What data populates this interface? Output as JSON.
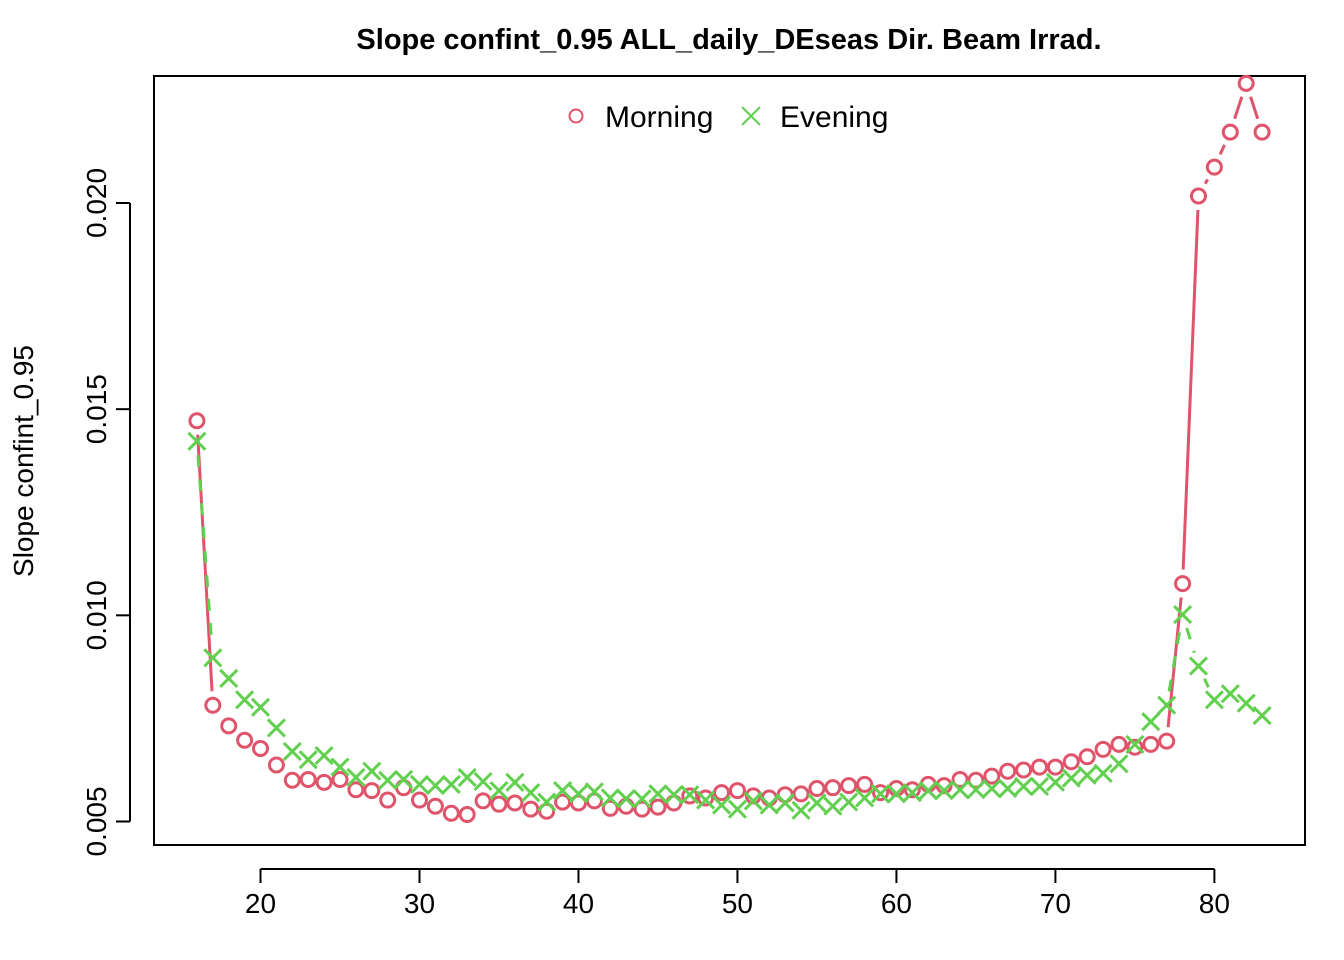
{
  "chart_data": {
    "type": "line",
    "title": "Slope confint_0.95 ALL_daily_DEseas Dir. Beam Irrad.",
    "xlabel": "",
    "ylabel": "Slope confint_0.95",
    "xlim": [
      13.3,
      85.7
    ],
    "ylim": [
      0.00443,
      0.02308
    ],
    "x_ticks": [
      20,
      30,
      40,
      50,
      60,
      70,
      80
    ],
    "y_ticks": [
      0.005,
      0.01,
      0.015,
      0.02
    ],
    "y_tick_labels": [
      "0.005",
      "0.010",
      "0.015",
      "0.020"
    ],
    "grid": false,
    "legend": {
      "position": "top-center"
    },
    "x": [
      16,
      17,
      18,
      19,
      20,
      21,
      22,
      23,
      24,
      25,
      26,
      27,
      28,
      29,
      30,
      31,
      32,
      33,
      34,
      35,
      36,
      37,
      38,
      39,
      40,
      41,
      42,
      43,
      44,
      45,
      46,
      47,
      48,
      49,
      50,
      51,
      52,
      53,
      54,
      55,
      56,
      57,
      58,
      59,
      60,
      61,
      62,
      63,
      64,
      65,
      66,
      67,
      68,
      69,
      70,
      71,
      72,
      73,
      74,
      75,
      76,
      77,
      78,
      79,
      80,
      81,
      82,
      83
    ],
    "series": [
      {
        "name": "Morning",
        "color": "#DF536B",
        "marker": "circle",
        "line": "solid",
        "values": [
          0.01472,
          0.00782,
          0.00732,
          0.00697,
          0.00677,
          0.00637,
          0.006,
          0.00602,
          0.00595,
          0.00602,
          0.00577,
          0.00575,
          0.00552,
          0.00582,
          0.00552,
          0.00537,
          0.0052,
          0.00517,
          0.0055,
          0.00542,
          0.00545,
          0.0053,
          0.00525,
          0.00547,
          0.00545,
          0.0055,
          0.00532,
          0.00537,
          0.0053,
          0.00535,
          0.00545,
          0.00562,
          0.00557,
          0.0057,
          0.00575,
          0.00562,
          0.00557,
          0.00565,
          0.00567,
          0.0058,
          0.00582,
          0.00587,
          0.0059,
          0.0057,
          0.0058,
          0.00577,
          0.0059,
          0.00587,
          0.00602,
          0.006,
          0.0061,
          0.00622,
          0.00625,
          0.00632,
          0.00632,
          0.00645,
          0.00657,
          0.00675,
          0.00687,
          0.0068,
          0.00687,
          0.00695,
          0.01077,
          0.02017,
          0.02087,
          0.02172,
          0.0229,
          0.02172
        ]
      },
      {
        "name": "Evening",
        "color": "#61D04F",
        "marker": "cross",
        "line": "dashed",
        "values": [
          0.01422,
          0.00897,
          0.00847,
          0.00795,
          0.00777,
          0.00727,
          0.0067,
          0.0065,
          0.0066,
          0.00632,
          0.00607,
          0.00622,
          0.006,
          0.00602,
          0.0059,
          0.00587,
          0.0059,
          0.00607,
          0.00597,
          0.00575,
          0.00595,
          0.0057,
          0.00547,
          0.00575,
          0.00567,
          0.00572,
          0.00557,
          0.00555,
          0.00555,
          0.00567,
          0.00565,
          0.00565,
          0.00552,
          0.0054,
          0.0053,
          0.0055,
          0.0054,
          0.00545,
          0.00527,
          0.00545,
          0.00537,
          0.00547,
          0.00557,
          0.00567,
          0.00567,
          0.0057,
          0.00575,
          0.00575,
          0.00577,
          0.00577,
          0.0058,
          0.0058,
          0.00585,
          0.00585,
          0.00595,
          0.00605,
          0.00612,
          0.00617,
          0.0064,
          0.00687,
          0.00742,
          0.00782,
          0.01002,
          0.00877,
          0.00795,
          0.0081,
          0.00787,
          0.00757
        ]
      }
    ]
  }
}
